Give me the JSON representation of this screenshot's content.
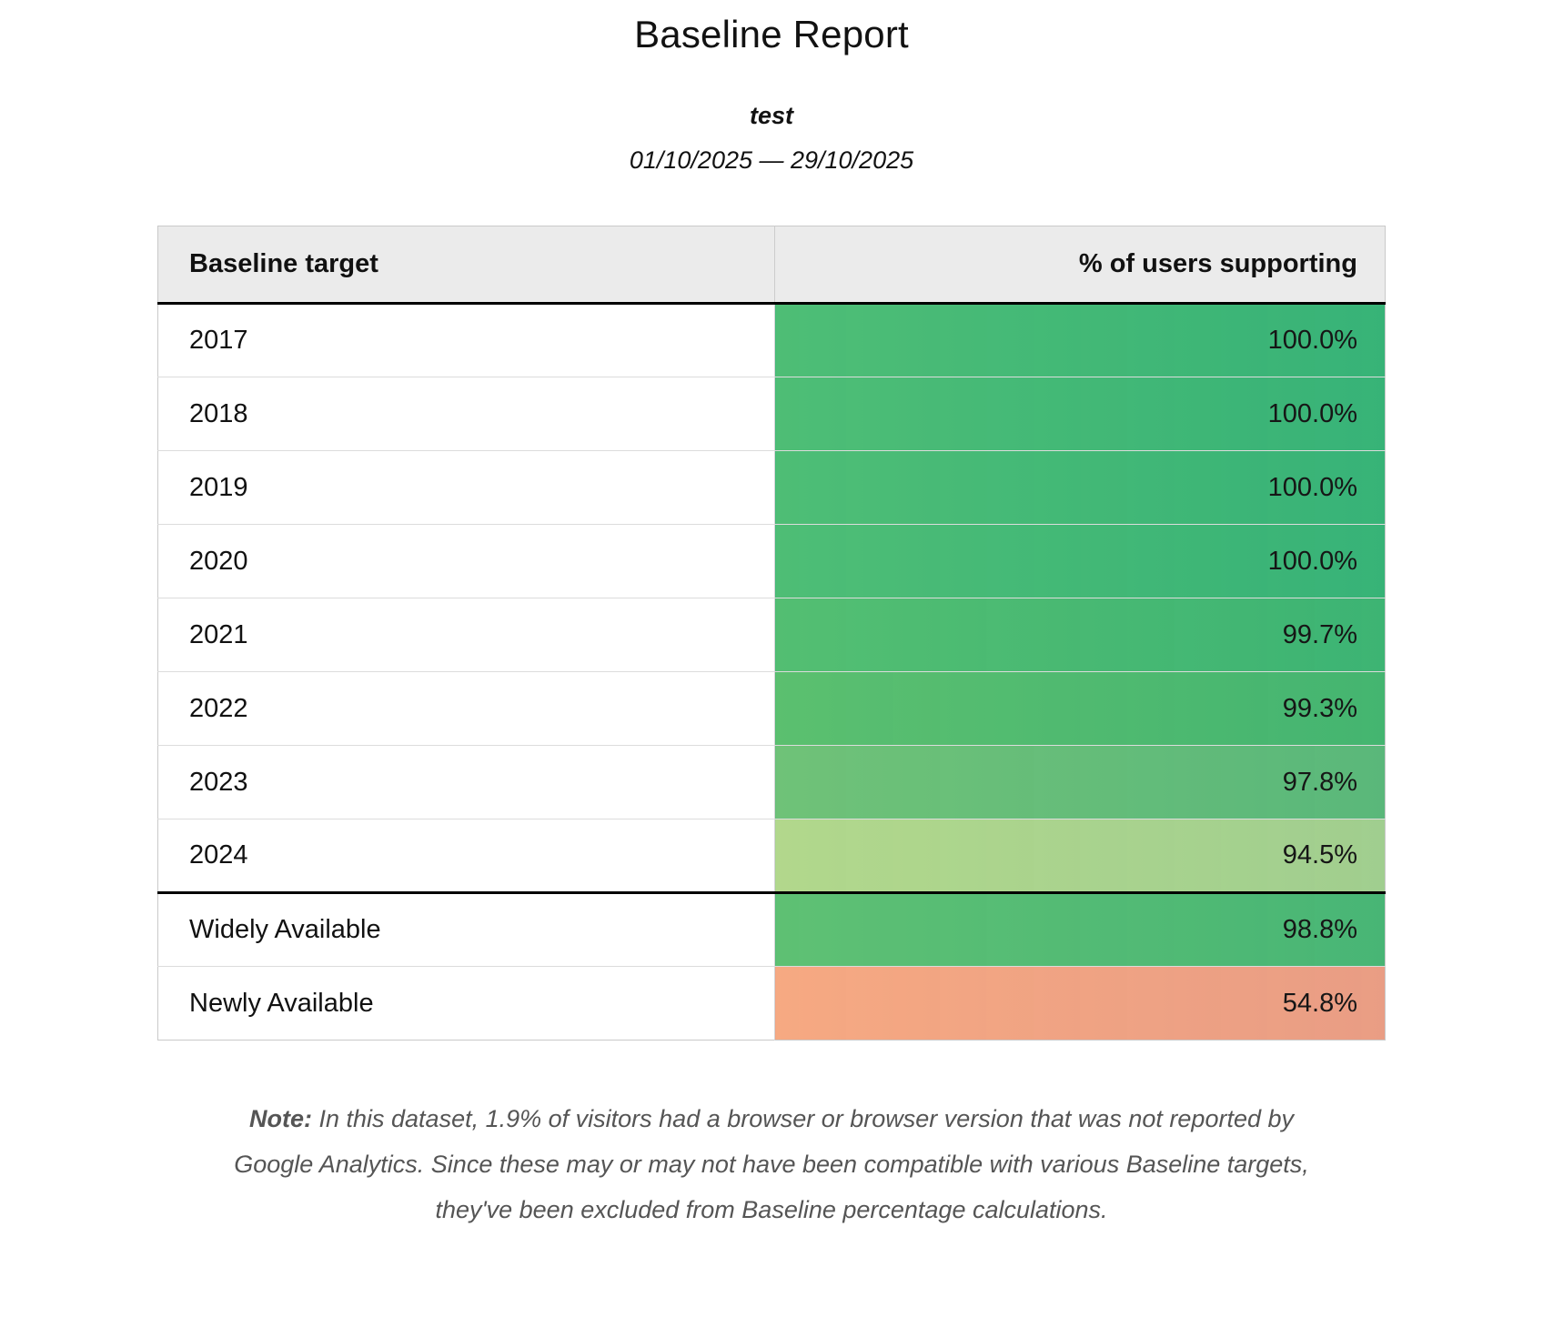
{
  "page": {
    "title": "Baseline Report",
    "subtitle": "test",
    "date_range": "01/10/2025 — 29/10/2025"
  },
  "table": {
    "headers": {
      "target": "Baseline target",
      "value": "% of users supporting"
    },
    "rows": [
      {
        "target": "2017",
        "value": "100.0%",
        "color": "#3ab873"
      },
      {
        "target": "2018",
        "value": "100.0%",
        "color": "#3ab873"
      },
      {
        "target": "2019",
        "value": "100.0%",
        "color": "#3ab873"
      },
      {
        "target": "2020",
        "value": "100.0%",
        "color": "#3ab873"
      },
      {
        "target": "2021",
        "value": "99.7%",
        "color": "#40b96f"
      },
      {
        "target": "2022",
        "value": "99.3%",
        "color": "#48ba6c"
      },
      {
        "target": "2023",
        "value": "97.8%",
        "color": "#5fbd76"
      },
      {
        "target": "2024",
        "value": "94.5%",
        "color": "#a9d58c"
      },
      {
        "target": "Widely Available",
        "value": "98.8%",
        "color": "#4cbb71"
      },
      {
        "target": "Newly Available",
        "value": "54.8%",
        "color": "#f5a181"
      }
    ]
  },
  "note": {
    "label": "Note:",
    "text": "In this dataset, 1.9% of visitors had a browser or browser version that was not reported by Google Analytics. Since these may or may not have been compatible with various Baseline targets, they've been excluded from Baseline percentage calculations."
  }
}
